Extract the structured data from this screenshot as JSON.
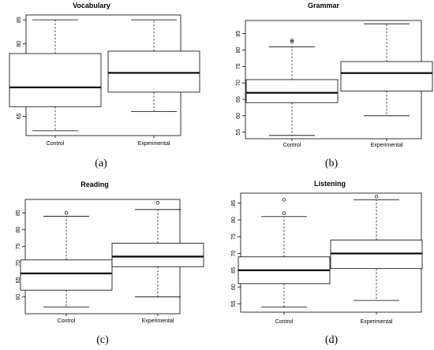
{
  "chart_data": [
    {
      "type": "box",
      "title": "Vocabulary",
      "panel_label": "(a)",
      "categories": [
        "Control",
        "Experimental"
      ],
      "ylim": [
        61,
        86
      ],
      "yticks": [
        65,
        70,
        75,
        80,
        85
      ],
      "boxes": [
        {
          "category": "Control",
          "whisker_low": 62,
          "q1": 67,
          "median": 71,
          "q3": 78,
          "whisker_high": 85,
          "outliers": []
        },
        {
          "category": "Experimental",
          "whisker_low": 66,
          "q1": 70,
          "median": 74,
          "q3": 78.5,
          "whisker_high": 85,
          "outliers": []
        }
      ]
    },
    {
      "type": "box",
      "title": "Grammar",
      "panel_label": "(b)",
      "categories": [
        "Control",
        "Experimental"
      ],
      "ylim": [
        53,
        89
      ],
      "yticks": [
        55,
        60,
        65,
        70,
        75,
        80,
        85
      ],
      "boxes": [
        {
          "category": "Control",
          "whisker_low": 54,
          "q1": 64,
          "median": 67,
          "q3": 71,
          "whisker_high": 81,
          "outliers": [
            82.5,
            83
          ]
        },
        {
          "category": "Experimental",
          "whisker_low": 60,
          "q1": 67.5,
          "median": 73,
          "q3": 76.5,
          "whisker_high": 88,
          "outliers": []
        }
      ]
    },
    {
      "type": "box",
      "title": "Reading",
      "panel_label": "(c)",
      "categories": [
        "Control",
        "Experimental"
      ],
      "ylim": [
        55,
        89
      ],
      "yticks": [
        60,
        65,
        70,
        75,
        80,
        85
      ],
      "boxes": [
        {
          "category": "Control",
          "whisker_low": 57,
          "q1": 62,
          "median": 67,
          "q3": 71,
          "whisker_high": 84,
          "outliers": [
            85
          ]
        },
        {
          "category": "Experimental",
          "whisker_low": 60,
          "q1": 69,
          "median": 72,
          "q3": 76,
          "whisker_high": 86,
          "outliers": [
            88
          ]
        }
      ]
    },
    {
      "type": "box",
      "title": "Listening",
      "panel_label": "(d)",
      "categories": [
        "Control",
        "Experimental"
      ],
      "ylim": [
        52.5,
        88
      ],
      "yticks": [
        55,
        60,
        65,
        70,
        75,
        80,
        85
      ],
      "boxes": [
        {
          "category": "Control",
          "whisker_low": 54,
          "q1": 61,
          "median": 65,
          "q3": 69,
          "whisker_high": 81,
          "outliers": [
            82,
            86
          ]
        },
        {
          "category": "Experimental",
          "whisker_low": 56,
          "q1": 65.5,
          "median": 70,
          "q3": 74,
          "whisker_high": 86,
          "outliers": [
            87
          ]
        }
      ]
    }
  ]
}
